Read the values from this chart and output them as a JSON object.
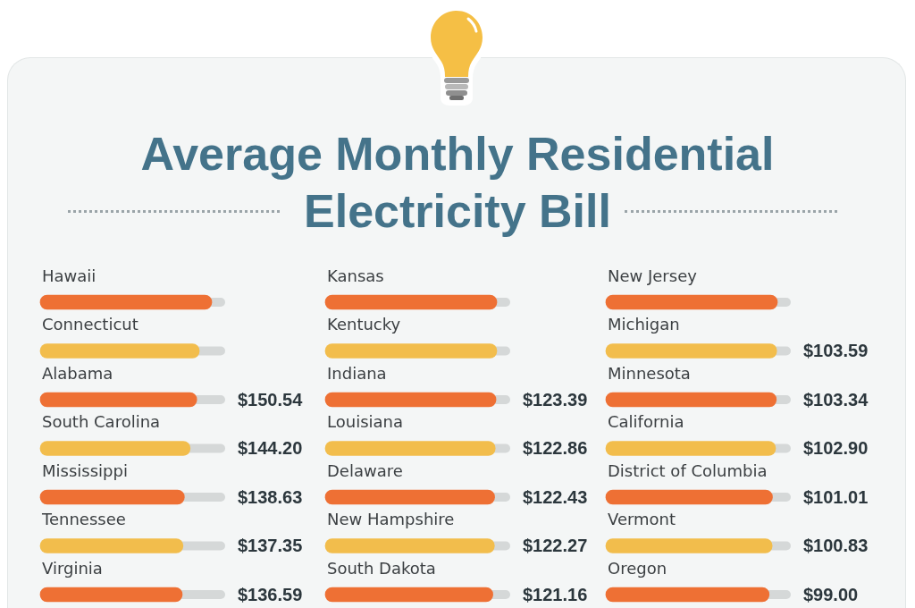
{
  "chart_data": [
    {
      "type": "bar",
      "title": "Average Monthly Residential Electricity Bill",
      "orientation": "horizontal",
      "categories": [
        "Hawaii",
        "Connecticut",
        "Alabama",
        "South Carolina",
        "Mississippi",
        "Tennessee",
        "Virginia"
      ],
      "values": [
        165,
        153,
        150.54,
        144.2,
        138.63,
        137.35,
        136.59
      ],
      "colors": [
        "#ee7034",
        "#f2bd4c",
        "#ee7034",
        "#f2bd4c",
        "#ee7034",
        "#f2bd4c",
        "#ee7034"
      ],
      "value_labels": [
        null,
        null,
        "$150.54",
        "$144.20",
        "$138.63",
        "$137.35",
        "$136.59"
      ],
      "tick_labels": "y"
    },
    {
      "type": "bar",
      "orientation": "horizontal",
      "categories": [
        "Kansas",
        "Kentucky",
        "Indiana",
        "Louisiana",
        "Delaware",
        "New Hampshire",
        "South Dakota"
      ],
      "values": [
        124,
        124,
        123.39,
        122.86,
        122.43,
        122.27,
        121.16
      ],
      "colors": [
        "#ee7034",
        "#f2bd4c",
        "#ee7034",
        "#f2bd4c",
        "#ee7034",
        "#f2bd4c",
        "#ee7034"
      ],
      "value_labels": [
        null,
        null,
        "$123.39",
        "$122.86",
        "$122.43",
        "$122.27",
        "$121.16"
      ],
      "tick_labels": "y"
    },
    {
      "type": "bar",
      "orientation": "horizontal",
      "categories": [
        "New Jersey",
        "Michigan",
        "Minnesota",
        "California",
        "District of Columbia",
        "Vermont",
        "Oregon"
      ],
      "values": [
        104,
        103.59,
        103.34,
        102.9,
        101.01,
        100.83,
        99
      ],
      "colors": [
        "#ee7034",
        "#f2bd4c",
        "#ee7034",
        "#f2bd4c",
        "#ee7034",
        "#f2bd4c",
        "#ee7034"
      ],
      "value_labels": [
        null,
        "$103.59",
        "$103.34",
        "$102.90",
        "$101.01",
        "$100.83",
        "$99.00"
      ],
      "tick_labels": "y"
    }
  ]
}
